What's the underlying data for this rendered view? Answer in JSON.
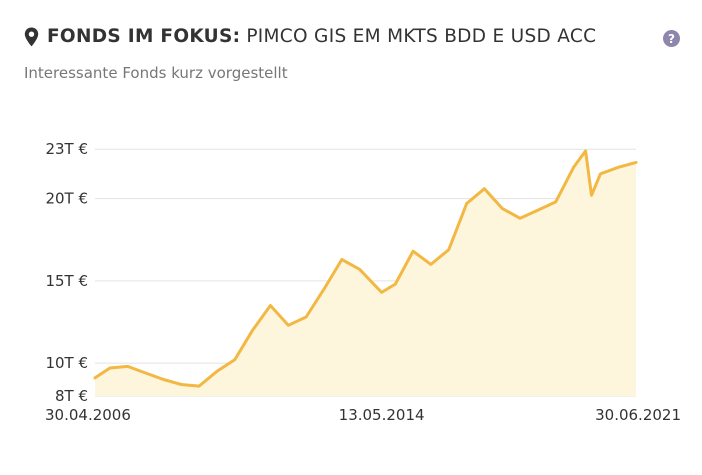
{
  "header": {
    "prefix": "FONDS IM FOKUS:",
    "fund_name": "PIMCO GIS EM MKTS BDD E USD ACC",
    "icon": "map-pin-icon",
    "help_icon": "question-circle-icon",
    "help_symbol": "?"
  },
  "subtitle": "Interessante Fonds kurz vorgestellt",
  "colors": {
    "line": "#f2b843",
    "area": "#fdf5dc",
    "grid": "#e3e3e3",
    "help_icon": "#8e86ad"
  },
  "chart_data": {
    "type": "area",
    "x": [
      "2006-04-30",
      "2006-09-30",
      "2007-03-31",
      "2007-09-30",
      "2008-03-31",
      "2008-09-30",
      "2009-03-31",
      "2009-09-30",
      "2010-03-31",
      "2010-09-30",
      "2011-03-31",
      "2011-09-30",
      "2012-03-31",
      "2012-09-30",
      "2013-03-31",
      "2013-09-30",
      "2014-05-13",
      "2014-09-30",
      "2015-03-31",
      "2015-09-30",
      "2016-03-31",
      "2016-09-30",
      "2017-03-31",
      "2017-09-30",
      "2018-03-31",
      "2018-09-30",
      "2019-03-31",
      "2019-09-30",
      "2020-01-31",
      "2020-03-31",
      "2020-06-30",
      "2020-12-31",
      "2021-06-30"
    ],
    "values": [
      9100,
      9700,
      9800,
      9400,
      9000,
      8700,
      8600,
      9500,
      10200,
      12000,
      13500,
      12300,
      12800,
      14500,
      16300,
      15700,
      14300,
      14800,
      16800,
      16000,
      16900,
      19700,
      20600,
      19400,
      18800,
      19300,
      19800,
      21900,
      22900,
      20200,
      21500,
      21900,
      22200
    ],
    "y_ticks": [
      {
        "value": 23000,
        "label": "23T €"
      },
      {
        "value": 20000,
        "label": "20T €"
      },
      {
        "value": 15000,
        "label": "15T €"
      },
      {
        "value": 10000,
        "label": "10T €"
      },
      {
        "value": 8000,
        "label": "8T €"
      }
    ],
    "x_ticks": [
      {
        "value": "2006-04-30",
        "label": "30.04.2006"
      },
      {
        "value": "2014-05-13",
        "label": "13.05.2014"
      },
      {
        "value": "2021-06-30",
        "label": "30.06.2021"
      }
    ],
    "ylim": [
      8000,
      23500
    ],
    "xlim": [
      "2006-04-30",
      "2021-06-30"
    ],
    "grid": "horizontal",
    "legend": "none"
  }
}
